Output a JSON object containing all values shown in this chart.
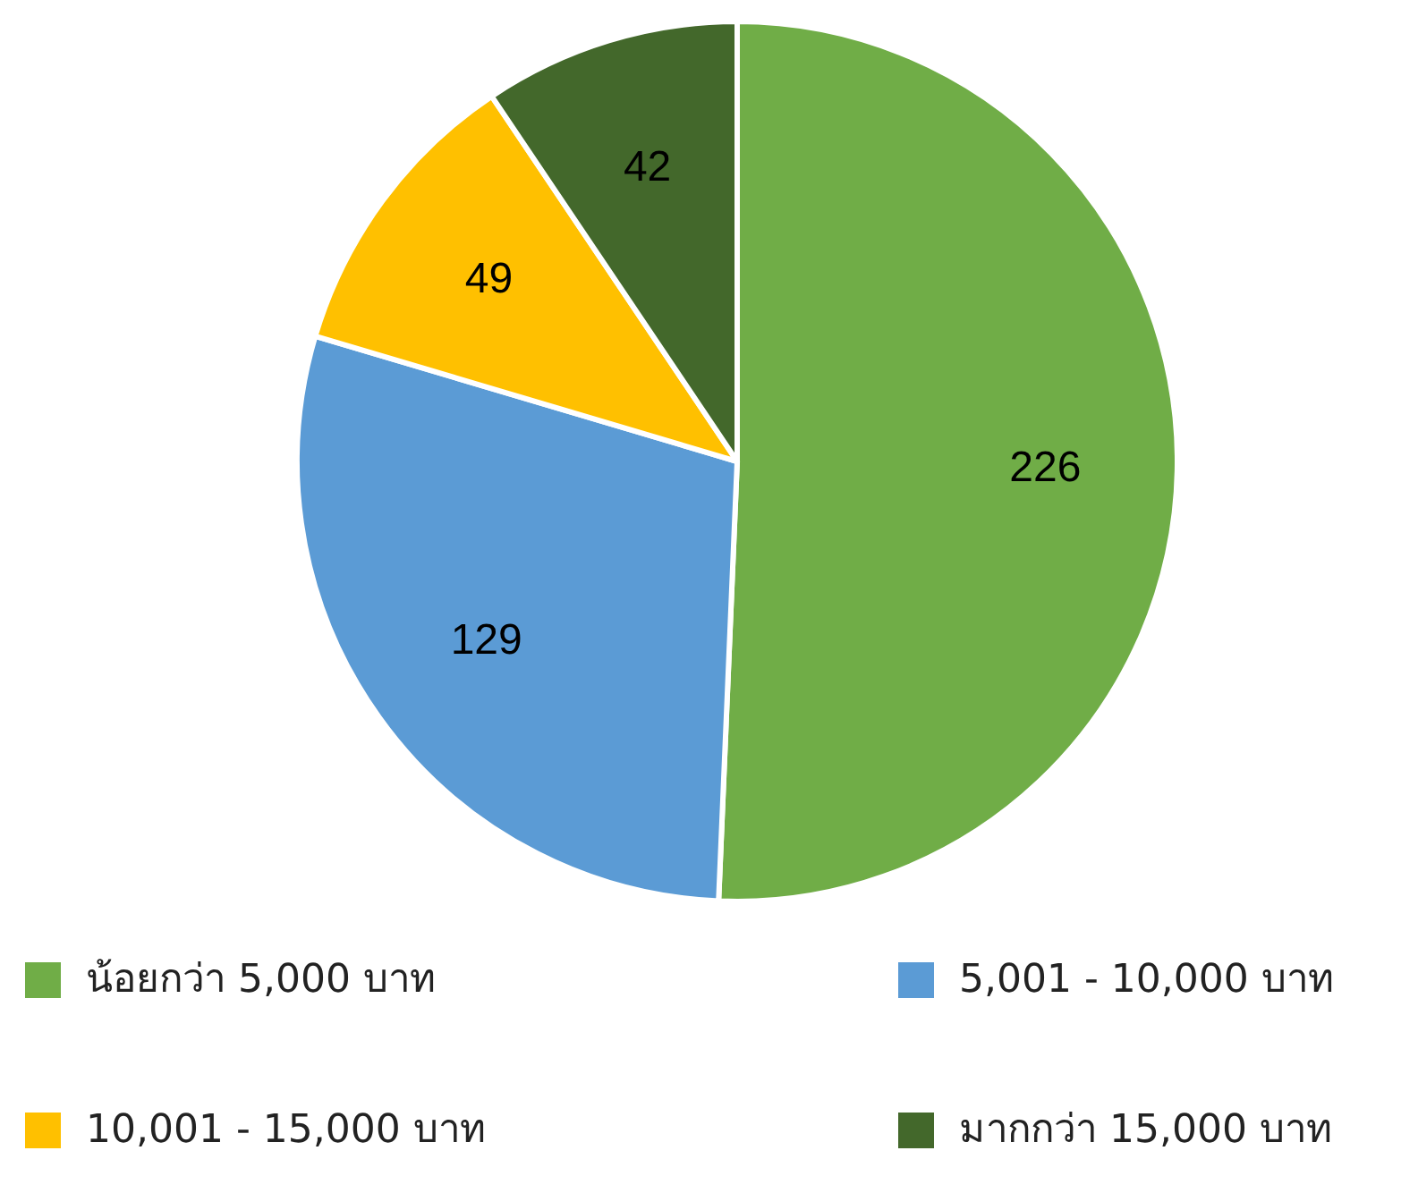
{
  "chart_data": {
    "type": "pie",
    "categories": [
      "น้อยกว่า 5,000 บาท",
      "5,001 - 10,000 บาท",
      "10,001 - 15,000 บาท",
      "มากกว่า 15,000 บาท"
    ],
    "values": [
      226,
      129,
      49,
      42
    ],
    "colors": [
      "#70ad47",
      "#5b9bd5",
      "#ffc000",
      "#43682b"
    ],
    "data_labels": true,
    "legend": "bottom"
  }
}
